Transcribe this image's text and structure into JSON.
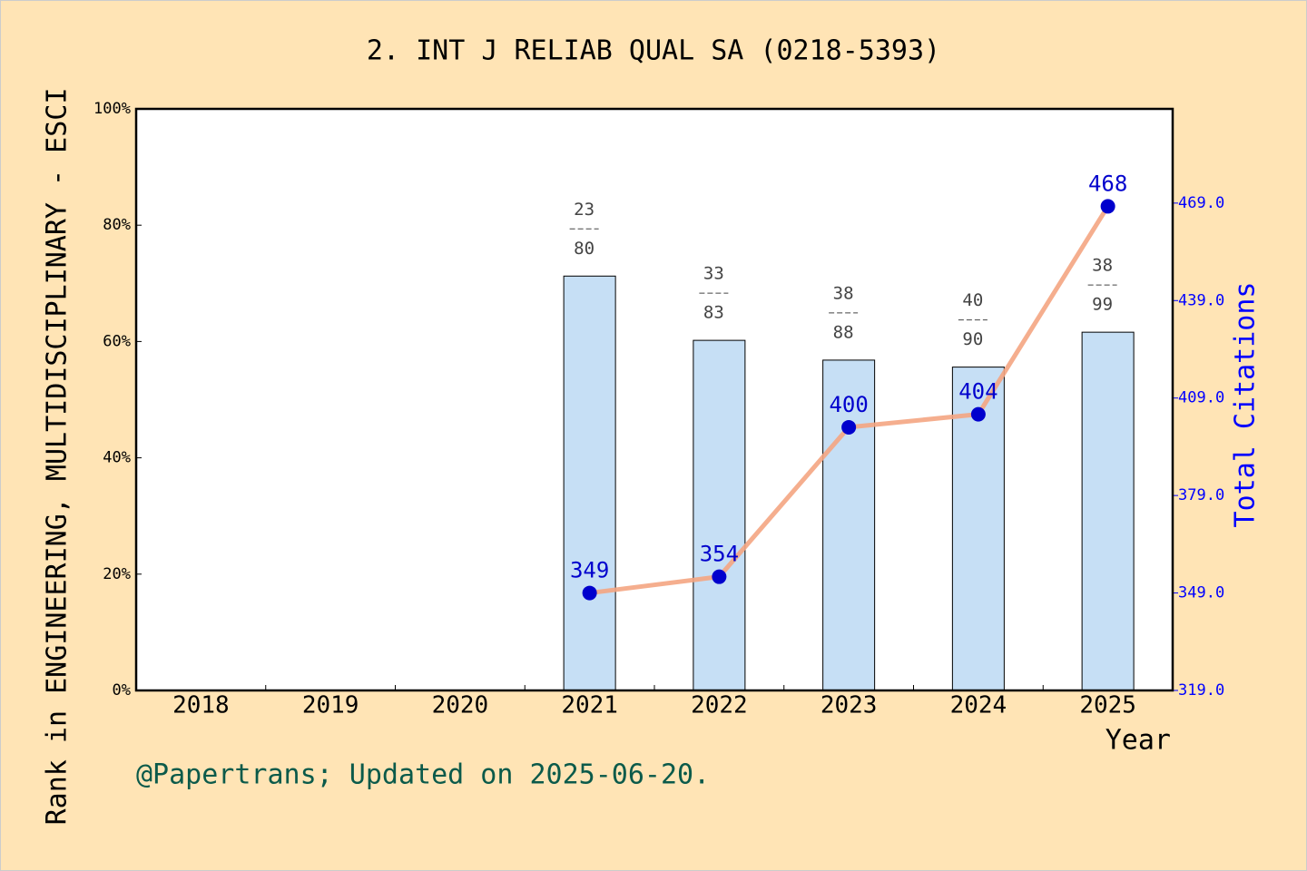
{
  "chart_data": {
    "type": "bar-line",
    "title": "2. INT J RELIAB QUAL SA (0218-5393)",
    "y_label": "Rank in ENGINEERING, MULTIDISCIPLINARY - ESCI",
    "y2_label": "Total Citations",
    "x_label": "Year",
    "footer": "@Papertrans; Updated on 2025-06-20.",
    "categories": [
      "2018",
      "2019",
      "2020",
      "2021",
      "2022",
      "2023",
      "2024",
      "2025"
    ],
    "ranks": [
      null,
      null,
      null,
      23,
      33,
      38,
      40,
      38
    ],
    "journal_counts": [
      null,
      null,
      null,
      80,
      83,
      88,
      90,
      99
    ],
    "series": [
      {
        "type": "bar",
        "color": "#c6dff5",
        "values": [
          null,
          null,
          null,
          71.25,
          60.2,
          56.8,
          55.6,
          61.6
        ]
      },
      {
        "type": "line",
        "axis": "y2",
        "color": "#f4a582",
        "marker_color": "#0000cd",
        "values": [
          null,
          null,
          null,
          349,
          354,
          400,
          404,
          468
        ]
      }
    ],
    "ylim": [
      0,
      100
    ],
    "yticks": [
      {
        "value": 0,
        "label": "0%"
      },
      {
        "value": 20,
        "label": "20%"
      },
      {
        "value": 40,
        "label": "40%"
      },
      {
        "value": 60,
        "label": "60%"
      },
      {
        "value": 80,
        "label": "80%"
      },
      {
        "value": 100,
        "label": "100%"
      }
    ],
    "y2lim": [
      319,
      498
    ],
    "y2ticks": [
      {
        "value": 319,
        "label": "319.0"
      },
      {
        "value": 349,
        "label": "349.0"
      },
      {
        "value": 379,
        "label": "379.0"
      },
      {
        "value": 409,
        "label": "409.0"
      },
      {
        "value": 439,
        "label": "439.0"
      },
      {
        "value": 469,
        "label": "469.0"
      }
    ]
  }
}
